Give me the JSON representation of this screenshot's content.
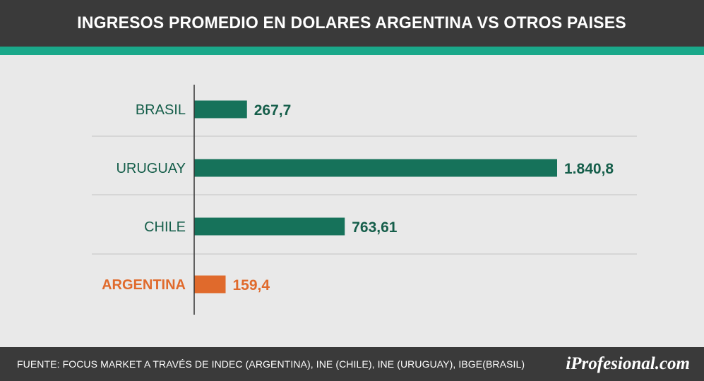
{
  "header": {
    "title": "INGRESOS PROMEDIO EN DOLARES ARGENTINA VS OTROS PAISES"
  },
  "footer": {
    "source": "FUENTE:  FOCUS MARKET A TRAVÉS DE INDEC (ARGENTINA), INE (CHILE), INE (URUGUAY), IBGE(BRASIL)",
    "brand": "iProfesional.com"
  },
  "colors": {
    "header_bg": "#3a3a3a",
    "accent": "#1aa88a",
    "bar_green": "#16725a",
    "label_green": "#155e4a",
    "highlight_orange": "#e06a2c",
    "background": "#e9e9e9"
  },
  "chart_data": {
    "type": "bar",
    "orientation": "horizontal",
    "title": "INGRESOS PROMEDIO EN DOLARES ARGENTINA VS OTROS PAISES",
    "categories": [
      "BRASIL",
      "URUGUAY",
      "CHILE",
      "ARGENTINA"
    ],
    "values": [
      267.7,
      1840.8,
      763.61,
      159.4
    ],
    "value_labels": [
      "267,7",
      "1.840,8",
      "763,61",
      "159,4"
    ],
    "highlight": "ARGENTINA",
    "xlabel": "",
    "ylabel": "",
    "xlim": [
      0,
      1840.8
    ],
    "grid": "separators between categories",
    "legend": "none"
  }
}
